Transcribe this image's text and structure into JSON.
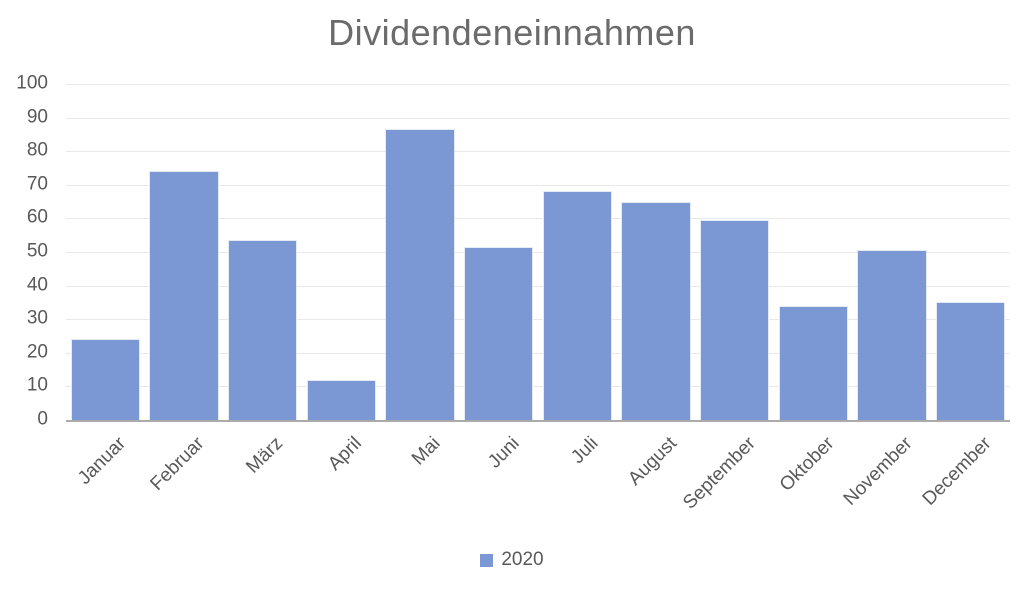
{
  "chart_data": {
    "type": "bar",
    "title": "Dividendeneinnahmen",
    "categories": [
      "Januar",
      "Februar",
      "März",
      "April",
      "Mai",
      "Juni",
      "Juli",
      "August",
      "September",
      "Oktober",
      "November",
      "December"
    ],
    "series": [
      {
        "name": "2020",
        "values": [
          24,
          74,
          53.6,
          12,
          86.6,
          51.4,
          68.3,
          65,
          59.5,
          34,
          50.5,
          35.2
        ]
      }
    ],
    "xlabel": "",
    "ylabel": "",
    "ylim": [
      0,
      100
    ],
    "ytick_step": 10,
    "ytick_labels": [
      "0",
      "10",
      "20",
      "30",
      "40",
      "50",
      "60",
      "70",
      "80",
      "90",
      "100"
    ],
    "grid": "horizontal",
    "legend_position": "bottom",
    "colors": {
      "bar": "#7C98D4",
      "bar_border": "#E4EBF7",
      "gridline": "#E9E9E9",
      "axis_line": "#ABABAB",
      "title_text": "#6B6B6B",
      "tick_text": "#595959"
    }
  }
}
